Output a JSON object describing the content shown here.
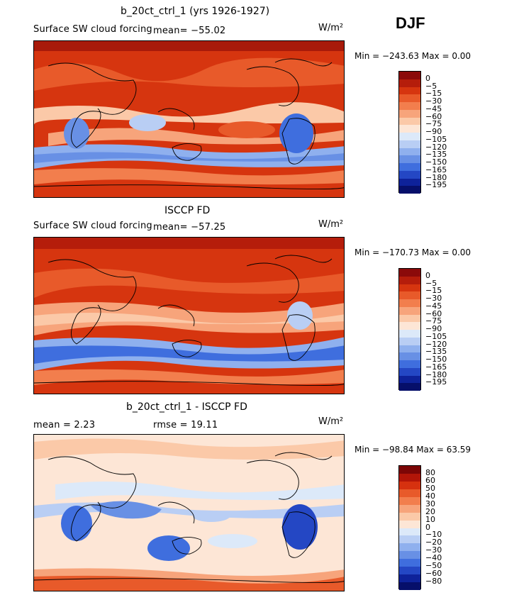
{
  "season": "DJF",
  "units": "W/m²",
  "panels": [
    {
      "title": "b_20ct_ctrl_1 (yrs 1926-1927)",
      "subtitle": "Surface SW cloud forcing",
      "mean_text": "mean=  −55.02",
      "minmax_text": "Min = −243.63  Max =    0.00",
      "palette": "negative",
      "levels": [
        "0",
        "−5",
        "−15",
        "−30",
        "−45",
        "−60",
        "−75",
        "−90",
        "−105",
        "−120",
        "−135",
        "−150",
        "−165",
        "−180",
        "−195"
      ]
    },
    {
      "title": "ISCCP FD",
      "subtitle": "Surface SW cloud forcing",
      "mean_text": "mean=  −57.25",
      "minmax_text": "Min = −170.73  Max =    0.00",
      "palette": "negative",
      "levels": [
        "0",
        "−5",
        "−15",
        "−30",
        "−45",
        "−60",
        "−75",
        "−90",
        "−105",
        "−120",
        "−135",
        "−150",
        "−165",
        "−180",
        "−195"
      ]
    },
    {
      "title": "b_20ct_ctrl_1 - ISCCP FD",
      "mean_text": "mean =    2.23",
      "rmse_text": "rmse =   19.11",
      "minmax_text": "Min = −98.84  Max =   63.59",
      "palette": "diverging",
      "levels": [
        "80",
        "60",
        "50",
        "40",
        "30",
        "20",
        "10",
        "0",
        "−10",
        "−20",
        "−30",
        "−40",
        "−50",
        "−60",
        "−80"
      ]
    }
  ],
  "colors": {
    "negative": [
      "#8b0a0a",
      "#b51d0b",
      "#d6350f",
      "#e85a2a",
      "#f27e4d",
      "#f7a47b",
      "#fbc9a8",
      "#fde6d6",
      "#dce9f9",
      "#b9cef4",
      "#8fb0ee",
      "#6890e5",
      "#3f6ede",
      "#2447c4",
      "#0e229a",
      "#060f6a"
    ],
    "diverging": [
      "#7c0606",
      "#b21508",
      "#d6310f",
      "#e85a2a",
      "#f27e4d",
      "#f7a47b",
      "#fbc9a8",
      "#fde6d6",
      "#dce9f9",
      "#b9cef4",
      "#8fb0ee",
      "#6890e5",
      "#3f6ede",
      "#2447c4",
      "#0e229a",
      "#060f6a"
    ]
  },
  "chart_data": [
    {
      "type": "heatmap",
      "title": "b_20ct_ctrl_1 (yrs 1926-1927)",
      "subtitle": "Surface SW cloud forcing",
      "mean": -55.02,
      "min": -243.63,
      "max": 0.0,
      "units": "W/m²",
      "season": "DJF",
      "levels": [
        0,
        -5,
        -15,
        -30,
        -45,
        -60,
        -75,
        -90,
        -105,
        -120,
        -135,
        -150,
        -165,
        -180,
        -195
      ]
    },
    {
      "type": "heatmap",
      "title": "ISCCP FD",
      "subtitle": "Surface SW cloud forcing",
      "mean": -57.25,
      "min": -170.73,
      "max": 0.0,
      "units": "W/m²",
      "levels": [
        0,
        -5,
        -15,
        -30,
        -45,
        -60,
        -75,
        -90,
        -105,
        -120,
        -135,
        -150,
        -165,
        -180,
        -195
      ]
    },
    {
      "type": "heatmap",
      "title": "b_20ct_ctrl_1 - ISCCP FD",
      "mean": 2.23,
      "rmse": 19.11,
      "min": -98.84,
      "max": 63.59,
      "units": "W/m²",
      "levels": [
        80,
        60,
        50,
        40,
        30,
        20,
        10,
        0,
        -10,
        -20,
        -30,
        -40,
        -50,
        -60,
        -80
      ]
    }
  ]
}
